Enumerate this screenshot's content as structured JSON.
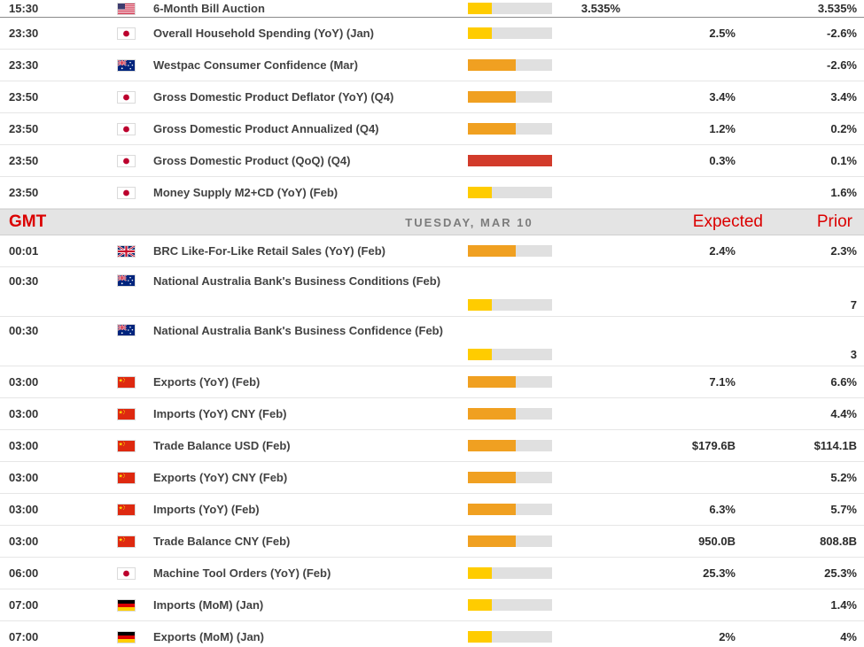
{
  "colors": {
    "low": "#FFCC00",
    "medium": "#F0A021",
    "high": "#D23B2B",
    "track": "#E0E0E0",
    "accent_red": "#DB0000",
    "header_bg": "#E4E4E4"
  },
  "day_header": {
    "gmt": "GMT",
    "date": "TUESDAY, MAR 10",
    "expected": "Expected",
    "prior": "Prior"
  },
  "rows": [
    {
      "type": "event",
      "time": "15:30",
      "country": "US",
      "event": "6-Month Bill Auction",
      "importance": "low",
      "actual": "3.535%",
      "expected": "",
      "prior": "3.535%"
    },
    {
      "type": "event",
      "time": "23:30",
      "country": "JP",
      "event": "Overall Household Spending (YoY) (Jan)",
      "importance": "low",
      "actual": "",
      "expected": "2.5%",
      "prior": "-2.6%"
    },
    {
      "type": "event",
      "time": "23:30",
      "country": "AU",
      "event": "Westpac Consumer Confidence (Mar)",
      "importance": "medium",
      "actual": "",
      "expected": "",
      "prior": "-2.6%"
    },
    {
      "type": "event",
      "time": "23:50",
      "country": "JP",
      "event": "Gross Domestic Product Deflator (YoY) (Q4)",
      "importance": "medium",
      "actual": "",
      "expected": "3.4%",
      "prior": "3.4%"
    },
    {
      "type": "event",
      "time": "23:50",
      "country": "JP",
      "event": "Gross Domestic Product Annualized (Q4)",
      "importance": "medium",
      "actual": "",
      "expected": "1.2%",
      "prior": "0.2%"
    },
    {
      "type": "event",
      "time": "23:50",
      "country": "JP",
      "event": "Gross Domestic Product (QoQ) (Q4)",
      "importance": "high",
      "actual": "",
      "expected": "0.3%",
      "prior": "0.1%"
    },
    {
      "type": "event",
      "time": "23:50",
      "country": "JP",
      "event": "Money Supply M2+CD (YoY) (Feb)",
      "importance": "low",
      "actual": "",
      "expected": "",
      "prior": "1.6%"
    },
    {
      "type": "day_header"
    },
    {
      "type": "event",
      "time": "00:01",
      "country": "GB",
      "event": "BRC Like-For-Like Retail Sales (YoY) (Feb)",
      "importance": "medium",
      "actual": "",
      "expected": "2.4%",
      "prior": "2.3%"
    },
    {
      "type": "event",
      "time": "00:30",
      "country": "AU",
      "event": "National Australia Bank's Business Conditions (Feb)",
      "importance": "low",
      "actual": "",
      "expected": "",
      "prior": "7"
    },
    {
      "type": "event",
      "time": "00:30",
      "country": "AU",
      "event": "National Australia Bank's Business Confidence (Feb)",
      "importance": "low",
      "actual": "",
      "expected": "",
      "prior": "3"
    },
    {
      "type": "event",
      "time": "03:00",
      "country": "CN",
      "event": "Exports (YoY) (Feb)",
      "importance": "medium",
      "actual": "",
      "expected": "7.1%",
      "prior": "6.6%"
    },
    {
      "type": "event",
      "time": "03:00",
      "country": "CN",
      "event": "Imports (YoY) CNY (Feb)",
      "importance": "medium",
      "actual": "",
      "expected": "",
      "prior": "4.4%"
    },
    {
      "type": "event",
      "time": "03:00",
      "country": "CN",
      "event": "Trade Balance USD (Feb)",
      "importance": "medium",
      "actual": "",
      "expected": "$179.6B",
      "prior": "$114.1B"
    },
    {
      "type": "event",
      "time": "03:00",
      "country": "CN",
      "event": "Exports (YoY) CNY (Feb)",
      "importance": "medium",
      "actual": "",
      "expected": "",
      "prior": "5.2%"
    },
    {
      "type": "event",
      "time": "03:00",
      "country": "CN",
      "event": "Imports (YoY) (Feb)",
      "importance": "medium",
      "actual": "",
      "expected": "6.3%",
      "prior": "5.7%"
    },
    {
      "type": "event",
      "time": "03:00",
      "country": "CN",
      "event": "Trade Balance CNY (Feb)",
      "importance": "medium",
      "actual": "",
      "expected": "950.0B",
      "prior": "808.8B"
    },
    {
      "type": "event",
      "time": "06:00",
      "country": "JP",
      "event": "Machine Tool Orders (YoY) (Feb)",
      "importance": "low",
      "actual": "",
      "expected": "25.3%",
      "prior": "25.3%"
    },
    {
      "type": "event",
      "time": "07:00",
      "country": "DE",
      "event": "Imports (MoM) (Jan)",
      "importance": "low",
      "actual": "",
      "expected": "",
      "prior": "1.4%"
    },
    {
      "type": "event",
      "time": "07:00",
      "country": "DE",
      "event": "Exports (MoM) (Jan)",
      "importance": "low",
      "actual": "",
      "expected": "2%",
      "prior": "4%"
    }
  ]
}
